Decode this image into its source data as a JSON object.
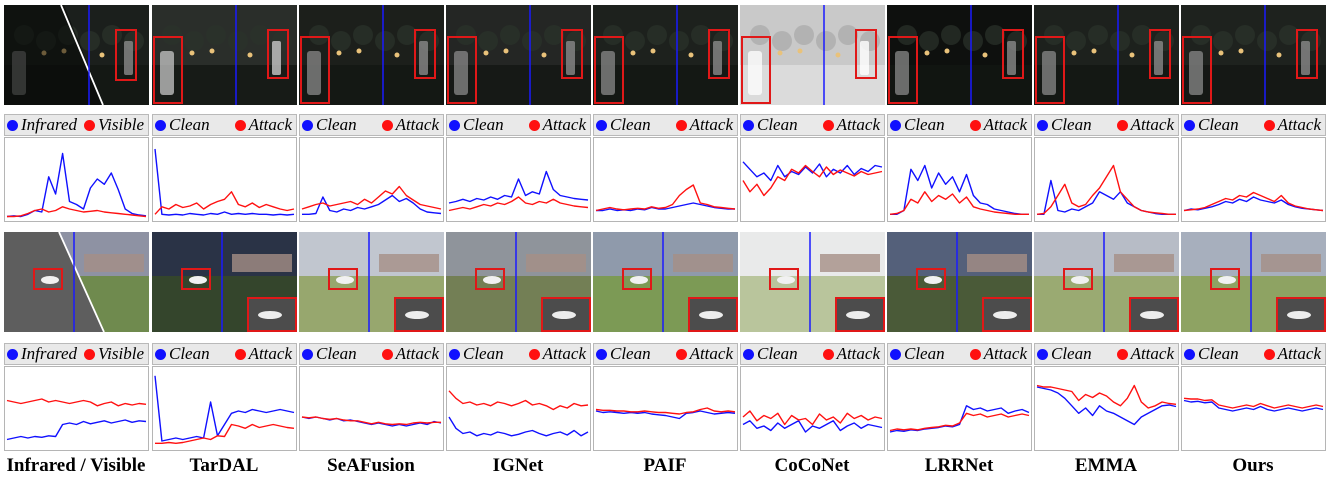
{
  "figure": {
    "columns": [
      {
        "method": "Infrared / Visible",
        "legend": [
          "Infrared",
          "Visible"
        ]
      },
      {
        "method": "TarDAL",
        "legend": [
          "Clean",
          "Attack"
        ]
      },
      {
        "method": "SeAFusion",
        "legend": [
          "Clean",
          "Attack"
        ]
      },
      {
        "method": "IGNet",
        "legend": [
          "Clean",
          "Attack"
        ]
      },
      {
        "method": "PAIF",
        "legend": [
          "Clean",
          "Attack"
        ]
      },
      {
        "method": "CoCoNet",
        "legend": [
          "Clean",
          "Attack"
        ]
      },
      {
        "method": "LRRNet",
        "legend": [
          "Clean",
          "Attack"
        ]
      },
      {
        "method": "EMMA",
        "legend": [
          "Clean",
          "Attack"
        ]
      },
      {
        "method": "Ours",
        "legend": [
          "Clean",
          "Attack"
        ]
      }
    ],
    "colors": {
      "series_a": "#1010ff",
      "series_b": "#ff1010",
      "box": "#e01818",
      "scanline": "#1a1aff"
    }
  },
  "chart_data": [
    {
      "type": "line",
      "row": "night",
      "panel": "Infrared / Visible",
      "series": [
        {
          "name": "Infrared",
          "values": [
            0.02,
            0.03,
            0.02,
            0.05,
            0.1,
            0.08,
            0.55,
            0.32,
            0.86,
            0.22,
            0.18,
            0.12,
            0.4,
            0.52,
            0.45,
            0.6,
            0.38,
            0.12,
            0.06,
            0.04,
            0.03
          ]
        },
        {
          "name": "Visible",
          "values": [
            0.02,
            0.02,
            0.03,
            0.06,
            0.1,
            0.12,
            0.08,
            0.1,
            0.15,
            0.12,
            0.1,
            0.08,
            0.09,
            0.1,
            0.08,
            0.07,
            0.06,
            0.05,
            0.04,
            0.03,
            0.02
          ]
        }
      ]
    },
    {
      "type": "line",
      "row": "night",
      "panel": "TarDAL",
      "series": [
        {
          "name": "Clean",
          "values": [
            0.92,
            0.05,
            0.04,
            0.05,
            0.04,
            0.06,
            0.05,
            0.04,
            0.06,
            0.05,
            0.08,
            0.05,
            0.06,
            0.05,
            0.06,
            0.05,
            0.05,
            0.04,
            0.05,
            0.04,
            0.05
          ]
        },
        {
          "name": "Attack",
          "values": [
            0.05,
            0.15,
            0.12,
            0.18,
            0.14,
            0.16,
            0.2,
            0.12,
            0.18,
            0.22,
            0.25,
            0.35,
            0.18,
            0.15,
            0.2,
            0.14,
            0.18,
            0.15,
            0.12,
            0.1,
            0.12
          ]
        }
      ]
    },
    {
      "type": "line",
      "row": "night",
      "panel": "SeAFusion",
      "series": [
        {
          "name": "Clean",
          "values": [
            0.05,
            0.05,
            0.06,
            0.28,
            0.1,
            0.08,
            0.12,
            0.1,
            0.14,
            0.12,
            0.15,
            0.18,
            0.24,
            0.3,
            0.22,
            0.26,
            0.2,
            0.12,
            0.08,
            0.07,
            0.06
          ]
        },
        {
          "name": "Attack",
          "values": [
            0.12,
            0.15,
            0.18,
            0.2,
            0.16,
            0.18,
            0.2,
            0.22,
            0.18,
            0.25,
            0.2,
            0.28,
            0.36,
            0.32,
            0.42,
            0.3,
            0.24,
            0.18,
            0.16,
            0.14,
            0.12
          ]
        }
      ]
    },
    {
      "type": "line",
      "row": "night",
      "panel": "IGNet",
      "series": [
        {
          "name": "Clean",
          "values": [
            0.2,
            0.22,
            0.25,
            0.22,
            0.26,
            0.24,
            0.28,
            0.25,
            0.3,
            0.28,
            0.52,
            0.3,
            0.35,
            0.32,
            0.62,
            0.38,
            0.3,
            0.28,
            0.26,
            0.25,
            0.24
          ]
        },
        {
          "name": "Attack",
          "values": [
            0.1,
            0.12,
            0.14,
            0.12,
            0.15,
            0.18,
            0.16,
            0.2,
            0.18,
            0.22,
            0.28,
            0.2,
            0.18,
            0.22,
            0.2,
            0.25,
            0.2,
            0.18,
            0.16,
            0.15,
            0.14
          ]
        }
      ]
    },
    {
      "type": "line",
      "row": "night",
      "panel": "PAIF",
      "series": [
        {
          "name": "Clean",
          "values": [
            0.1,
            0.1,
            0.12,
            0.1,
            0.11,
            0.1,
            0.12,
            0.11,
            0.14,
            0.12,
            0.12,
            0.14,
            0.16,
            0.18,
            0.2,
            0.18,
            0.16,
            0.14,
            0.13,
            0.12,
            0.12
          ]
        },
        {
          "name": "Attack",
          "values": [
            0.1,
            0.12,
            0.14,
            0.12,
            0.11,
            0.12,
            0.13,
            0.12,
            0.15,
            0.13,
            0.14,
            0.18,
            0.3,
            0.38,
            0.44,
            0.2,
            0.18,
            0.15,
            0.14,
            0.13,
            0.12
          ]
        }
      ]
    },
    {
      "type": "line",
      "row": "night",
      "panel": "CoCoNet",
      "series": [
        {
          "name": "Clean",
          "values": [
            0.75,
            0.65,
            0.55,
            0.6,
            0.5,
            0.7,
            0.55,
            0.62,
            0.58,
            0.68,
            0.6,
            0.72,
            0.55,
            0.65,
            0.6,
            0.7,
            0.58,
            0.66,
            0.62,
            0.7,
            0.68
          ]
        },
        {
          "name": "Attack",
          "values": [
            0.5,
            0.35,
            0.45,
            0.3,
            0.4,
            0.55,
            0.5,
            0.65,
            0.6,
            0.7,
            0.62,
            0.55,
            0.68,
            0.58,
            0.64,
            0.6,
            0.56,
            0.62,
            0.58,
            0.6,
            0.62
          ]
        }
      ]
    },
    {
      "type": "line",
      "row": "night",
      "panel": "LRRNet",
      "series": [
        {
          "name": "Clean",
          "values": [
            0.05,
            0.05,
            0.1,
            0.65,
            0.5,
            0.7,
            0.4,
            0.6,
            0.45,
            0.55,
            0.35,
            0.58,
            0.3,
            0.2,
            0.18,
            0.12,
            0.1,
            0.08,
            0.06,
            0.05,
            0.05
          ]
        },
        {
          "name": "Attack",
          "values": [
            0.05,
            0.06,
            0.1,
            0.25,
            0.2,
            0.35,
            0.22,
            0.3,
            0.25,
            0.32,
            0.2,
            0.28,
            0.15,
            0.12,
            0.1,
            0.08,
            0.07,
            0.06,
            0.05,
            0.05,
            0.05
          ]
        }
      ]
    },
    {
      "type": "line",
      "row": "night",
      "panel": "EMMA",
      "series": [
        {
          "name": "Clean",
          "values": [
            0.05,
            0.05,
            0.5,
            0.1,
            0.08,
            0.12,
            0.1,
            0.15,
            0.2,
            0.35,
            0.3,
            0.25,
            0.35,
            0.2,
            0.15,
            0.1,
            0.08,
            0.06,
            0.05,
            0.05,
            0.05
          ]
        },
        {
          "name": "Attack",
          "values": [
            0.05,
            0.06,
            0.15,
            0.3,
            0.45,
            0.2,
            0.15,
            0.18,
            0.3,
            0.4,
            0.55,
            0.7,
            0.35,
            0.25,
            0.15,
            0.1,
            0.08,
            0.07,
            0.06,
            0.05,
            0.05
          ]
        }
      ]
    },
    {
      "type": "line",
      "row": "night",
      "panel": "Ours",
      "series": [
        {
          "name": "Clean",
          "values": [
            0.1,
            0.12,
            0.11,
            0.13,
            0.15,
            0.18,
            0.22,
            0.2,
            0.25,
            0.22,
            0.28,
            0.24,
            0.22,
            0.2,
            0.24,
            0.18,
            0.15,
            0.13,
            0.12,
            0.11,
            0.1
          ]
        },
        {
          "name": "Attack",
          "values": [
            0.1,
            0.11,
            0.12,
            0.14,
            0.18,
            0.22,
            0.26,
            0.24,
            0.3,
            0.28,
            0.34,
            0.3,
            0.26,
            0.22,
            0.3,
            0.2,
            0.16,
            0.14,
            0.12,
            0.11,
            0.1
          ]
        }
      ]
    },
    {
      "type": "line",
      "row": "day",
      "panel": "Infrared / Visible",
      "series": [
        {
          "name": "Infrared",
          "values": [
            0.1,
            0.12,
            0.14,
            0.12,
            0.14,
            0.13,
            0.15,
            0.14,
            0.3,
            0.32,
            0.3,
            0.34,
            0.31,
            0.33,
            0.35,
            0.32,
            0.34,
            0.36,
            0.33,
            0.35,
            0.34
          ]
        },
        {
          "name": "Visible",
          "values": [
            0.62,
            0.6,
            0.58,
            0.6,
            0.62,
            0.64,
            0.6,
            0.62,
            0.6,
            0.58,
            0.6,
            0.62,
            0.6,
            0.55,
            0.58,
            0.6,
            0.55,
            0.58,
            0.56,
            0.58,
            0.57
          ]
        }
      ]
    },
    {
      "type": "line",
      "row": "day",
      "panel": "TarDAL",
      "series": [
        {
          "name": "Clean",
          "values": [
            0.95,
            0.08,
            0.1,
            0.12,
            0.1,
            0.12,
            0.14,
            0.12,
            0.6,
            0.15,
            0.3,
            0.45,
            0.48,
            0.46,
            0.5,
            0.48,
            0.46,
            0.48,
            0.5,
            0.48,
            0.46
          ]
        },
        {
          "name": "Attack",
          "values": [
            0.05,
            0.05,
            0.06,
            0.05,
            0.06,
            0.08,
            0.1,
            0.12,
            0.1,
            0.15,
            0.14,
            0.3,
            0.28,
            0.25,
            0.3,
            0.26,
            0.28,
            0.3,
            0.28,
            0.26,
            0.25
          ]
        }
      ]
    },
    {
      "type": "line",
      "row": "day",
      "panel": "SeAFusion",
      "series": [
        {
          "name": "Clean",
          "values": [
            0.4,
            0.38,
            0.4,
            0.38,
            0.36,
            0.38,
            0.35,
            0.36,
            0.34,
            0.32,
            0.3,
            0.32,
            0.3,
            0.28,
            0.3,
            0.28,
            0.3,
            0.32,
            0.3,
            0.34,
            0.32
          ]
        },
        {
          "name": "Attack",
          "values": [
            0.4,
            0.39,
            0.4,
            0.38,
            0.37,
            0.38,
            0.36,
            0.35,
            0.35,
            0.33,
            0.31,
            0.33,
            0.31,
            0.3,
            0.31,
            0.3,
            0.32,
            0.33,
            0.32,
            0.33,
            0.33
          ]
        }
      ]
    },
    {
      "type": "line",
      "row": "day",
      "panel": "IGNet",
      "series": [
        {
          "name": "Clean",
          "values": [
            0.4,
            0.25,
            0.18,
            0.2,
            0.15,
            0.18,
            0.16,
            0.2,
            0.18,
            0.15,
            0.17,
            0.2,
            0.22,
            0.18,
            0.15,
            0.18,
            0.2,
            0.16,
            0.22,
            0.15,
            0.2
          ]
        },
        {
          "name": "Attack",
          "values": [
            0.75,
            0.65,
            0.58,
            0.6,
            0.56,
            0.58,
            0.55,
            0.6,
            0.58,
            0.55,
            0.58,
            0.62,
            0.56,
            0.58,
            0.55,
            0.5,
            0.55,
            0.52,
            0.58,
            0.55,
            0.56
          ]
        }
      ]
    },
    {
      "type": "line",
      "row": "day",
      "panel": "PAIF",
      "series": [
        {
          "name": "Clean",
          "values": [
            0.48,
            0.46,
            0.47,
            0.46,
            0.45,
            0.46,
            0.45,
            0.46,
            0.44,
            0.43,
            0.42,
            0.4,
            0.38,
            0.45,
            0.46,
            0.48,
            0.46,
            0.44,
            0.45,
            0.46,
            0.45
          ]
        },
        {
          "name": "Attack",
          "values": [
            0.5,
            0.49,
            0.49,
            0.48,
            0.48,
            0.47,
            0.47,
            0.48,
            0.47,
            0.46,
            0.46,
            0.45,
            0.44,
            0.46,
            0.47,
            0.5,
            0.52,
            0.48,
            0.47,
            0.48,
            0.47
          ]
        }
      ]
    },
    {
      "type": "line",
      "row": "day",
      "panel": "CoCoNet",
      "series": [
        {
          "name": "Clean",
          "values": [
            0.3,
            0.35,
            0.25,
            0.28,
            0.22,
            0.32,
            0.25,
            0.3,
            0.35,
            0.2,
            0.28,
            0.25,
            0.3,
            0.35,
            0.22,
            0.28,
            0.32,
            0.25,
            0.3,
            0.28,
            0.26
          ]
        },
        {
          "name": "Attack",
          "values": [
            0.4,
            0.48,
            0.35,
            0.42,
            0.38,
            0.45,
            0.3,
            0.42,
            0.36,
            0.38,
            0.3,
            0.44,
            0.36,
            0.4,
            0.32,
            0.45,
            0.38,
            0.42,
            0.36,
            0.4,
            0.38
          ]
        }
      ]
    },
    {
      "type": "line",
      "row": "day",
      "panel": "LRRNet",
      "series": [
        {
          "name": "Clean",
          "values": [
            0.2,
            0.22,
            0.21,
            0.23,
            0.22,
            0.24,
            0.25,
            0.26,
            0.28,
            0.27,
            0.3,
            0.55,
            0.5,
            0.52,
            0.48,
            0.5,
            0.52,
            0.45,
            0.48,
            0.5,
            0.46
          ]
        },
        {
          "name": "Attack",
          "values": [
            0.22,
            0.24,
            0.23,
            0.24,
            0.23,
            0.25,
            0.26,
            0.27,
            0.29,
            0.28,
            0.32,
            0.45,
            0.42,
            0.44,
            0.4,
            0.42,
            0.44,
            0.4,
            0.42,
            0.44,
            0.42
          ]
        }
      ]
    },
    {
      "type": "line",
      "row": "day",
      "panel": "EMMA",
      "series": [
        {
          "name": "Clean",
          "values": [
            0.8,
            0.78,
            0.76,
            0.72,
            0.65,
            0.55,
            0.45,
            0.52,
            0.42,
            0.55,
            0.48,
            0.45,
            0.4,
            0.35,
            0.3,
            0.4,
            0.45,
            0.5,
            0.55,
            0.56,
            0.54
          ]
        },
        {
          "name": "Attack",
          "values": [
            0.82,
            0.8,
            0.8,
            0.78,
            0.76,
            0.74,
            0.62,
            0.7,
            0.66,
            0.72,
            0.68,
            0.6,
            0.55,
            0.65,
            0.82,
            0.6,
            0.52,
            0.55,
            0.6,
            0.58,
            0.57
          ]
        }
      ]
    },
    {
      "type": "line",
      "row": "day",
      "panel": "Ours",
      "series": [
        {
          "name": "Clean",
          "values": [
            0.62,
            0.6,
            0.61,
            0.59,
            0.6,
            0.52,
            0.5,
            0.48,
            0.5,
            0.52,
            0.5,
            0.54,
            0.5,
            0.48,
            0.5,
            0.52,
            0.5,
            0.48,
            0.5,
            0.52,
            0.5
          ]
        },
        {
          "name": "Attack",
          "values": [
            0.65,
            0.64,
            0.64,
            0.62,
            0.63,
            0.56,
            0.54,
            0.52,
            0.54,
            0.56,
            0.54,
            0.58,
            0.55,
            0.52,
            0.54,
            0.56,
            0.54,
            0.52,
            0.54,
            0.56,
            0.54
          ]
        }
      ]
    }
  ]
}
